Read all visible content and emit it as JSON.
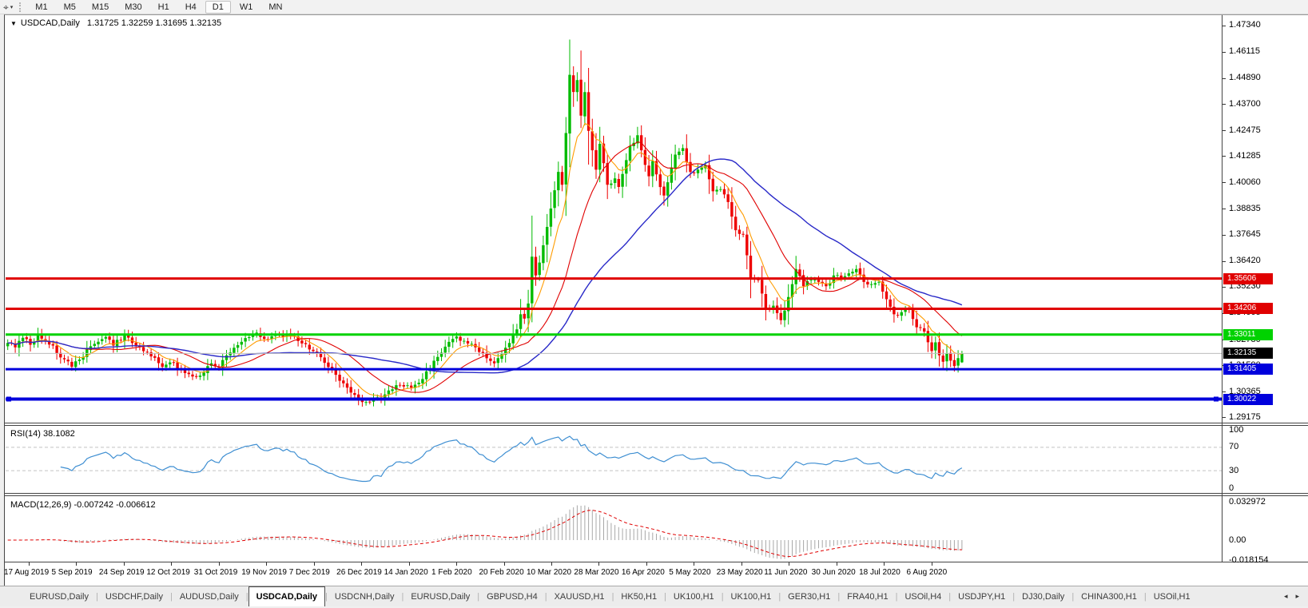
{
  "toolbar": {
    "tool_icon_glyph": "⌖",
    "dropdown_caret": "▾",
    "timeframes": [
      "M1",
      "M5",
      "M15",
      "M30",
      "H1",
      "H4",
      "D1",
      "W1",
      "MN"
    ],
    "active_timeframe": "D1"
  },
  "chart_header": {
    "collapse_icon": "▼",
    "symbol_label": "USDCAD,Daily",
    "ohlc_text": "1.31725 1.32259 1.31695 1.32135"
  },
  "chart_data": {
    "type": "candlestick",
    "symbol": "USDCAD",
    "timeframe": "Daily",
    "last_ohlc": {
      "open": 1.31725,
      "high": 1.32259,
      "low": 1.31695,
      "close": 1.32135
    },
    "price_axis": {
      "ticks": [
        "1.47340",
        "1.46115",
        "1.44890",
        "1.43700",
        "1.42475",
        "1.41285",
        "1.40060",
        "1.38835",
        "1.37645",
        "1.36420",
        "1.35230",
        "1.34005",
        "1.32780",
        "1.31590",
        "1.30365",
        "1.29175"
      ],
      "top_price": 1.4781,
      "bottom_price": 1.2893
    },
    "time_axis": [
      "17 Aug 2019",
      "5 Sep 2019",
      "24 Sep 2019",
      "12 Oct 2019",
      "31 Oct 2019",
      "19 Nov 2019",
      "7 Dec 2019",
      "26 Dec 2019",
      "14 Jan 2020",
      "1 Feb 2020",
      "20 Feb 2020",
      "10 Mar 2020",
      "28 Mar 2020",
      "16 Apr 2020",
      "5 May 2020",
      "23 May 2020",
      "11 Jun 2020",
      "30 Jun 2020",
      "18 Jul 2020",
      "6 Aug 2020"
    ],
    "horizontal_lines": [
      {
        "price": 1.35606,
        "label": "1.35606",
        "color": "#e00000",
        "width": 3,
        "selected": false
      },
      {
        "price": 1.34206,
        "label": "1.34206",
        "color": "#e00000",
        "width": 3,
        "selected": false
      },
      {
        "price": 1.33011,
        "label": "1.33011",
        "color": "#00d200",
        "width": 3,
        "selected": false
      },
      {
        "price": 1.31405,
        "label": "1.31405",
        "color": "#0000dc",
        "width": 3,
        "selected": false
      },
      {
        "price": 1.30022,
        "label": "1.30022",
        "color": "#0000dc",
        "width": 4,
        "selected": true
      }
    ],
    "current_price_line": {
      "price": 1.32135,
      "label": "1.32135",
      "line_color": "#bdbdbd",
      "label_bg": "#000000"
    },
    "candles": {
      "count": 254,
      "up_color": "#00bb00",
      "down_color": "#ee0000",
      "global_high": 1.4668,
      "close_anchors": [
        [
          0,
          1.3262
        ],
        [
          2,
          1.3242
        ],
        [
          4,
          1.3286
        ],
        [
          6,
          1.3254
        ],
        [
          8,
          1.3298
        ],
        [
          10,
          1.3272
        ],
        [
          12,
          1.325
        ],
        [
          14,
          1.3195
        ],
        [
          17,
          1.3152
        ],
        [
          19,
          1.3185
        ],
        [
          21,
          1.3232
        ],
        [
          24,
          1.3268
        ],
        [
          26,
          1.329
        ],
        [
          28,
          1.325
        ],
        [
          31,
          1.33
        ],
        [
          33,
          1.3262
        ],
        [
          35,
          1.3244
        ],
        [
          38,
          1.32
        ],
        [
          41,
          1.3152
        ],
        [
          43,
          1.3172
        ],
        [
          46,
          1.3138
        ],
        [
          48,
          1.3118
        ],
        [
          50,
          1.3108
        ],
        [
          52,
          1.3125
        ],
        [
          54,
          1.3168
        ],
        [
          56,
          1.3148
        ],
        [
          58,
          1.3205
        ],
        [
          61,
          1.3252
        ],
        [
          63,
          1.3285
        ],
        [
          66,
          1.331
        ],
        [
          69,
          1.328
        ],
        [
          72,
          1.3302
        ],
        [
          75,
          1.3295
        ],
        [
          78,
          1.326
        ],
        [
          81,
          1.3225
        ],
        [
          84,
          1.317
        ],
        [
          87,
          1.3115
        ],
        [
          89,
          1.3075
        ],
        [
          91,
          1.3032
        ],
        [
          93,
          1.3002
        ],
        [
          95,
          1.2988
        ],
        [
          97,
          1.3008
        ],
        [
          99,
          1.2998
        ],
        [
          101,
          1.3042
        ],
        [
          104,
          1.3068
        ],
        [
          107,
          1.3055
        ],
        [
          110,
          1.3095
        ],
        [
          113,
          1.318
        ],
        [
          116,
          1.3245
        ],
        [
          119,
          1.3292
        ],
        [
          121,
          1.3272
        ],
        [
          123,
          1.3258
        ],
        [
          126,
          1.3215
        ],
        [
          129,
          1.3168
        ],
        [
          131,
          1.321
        ],
        [
          133,
          1.3262
        ],
        [
          135,
          1.3325
        ],
        [
          136,
          1.3395
        ],
        [
          137,
          1.3375
        ],
        [
          138,
          1.3445
        ],
        [
          139,
          1.3662
        ],
        [
          140,
          1.3575
        ],
        [
          141,
          1.3635
        ],
        [
          142,
          1.3715
        ],
        [
          143,
          1.38
        ],
        [
          144,
          1.3885
        ],
        [
          145,
          1.397
        ],
        [
          146,
          1.4055
        ],
        [
          147,
          1.3995
        ],
        [
          148,
          1.4235
        ],
        [
          149,
          1.4505
        ],
        [
          150,
          1.4425
        ],
        [
          151,
          1.448
        ],
        [
          152,
          1.4315
        ],
        [
          153,
          1.4425
        ],
        [
          154,
          1.4245
        ],
        [
          155,
          1.4155
        ],
        [
          156,
          1.4065
        ],
        [
          157,
          1.4185
        ],
        [
          158,
          1.4095
        ],
        [
          159,
          1.3995
        ],
        [
          161,
          1.4025
        ],
        [
          162,
          1.3985
        ],
        [
          163,
          1.4045
        ],
        [
          165,
          1.4175
        ],
        [
          167,
          1.4225
        ],
        [
          168,
          1.4155
        ],
        [
          170,
          1.4035
        ],
        [
          171,
          1.4105
        ],
        [
          173,
          1.3985
        ],
        [
          174,
          1.3945
        ],
        [
          176,
          1.4075
        ],
        [
          177,
          1.4135
        ],
        [
          179,
          1.4165
        ],
        [
          181,
          1.4055
        ],
        [
          183,
          1.4065
        ],
        [
          185,
          1.4085
        ],
        [
          187,
          1.3965
        ],
        [
          189,
          1.3975
        ],
        [
          191,
          1.3915
        ],
        [
          193,
          1.3785
        ],
        [
          195,
          1.3765
        ],
        [
          197,
          1.3565
        ],
        [
          199,
          1.3555
        ],
        [
          201,
          1.3425
        ],
        [
          203,
          1.3435
        ],
        [
          205,
          1.3368
        ],
        [
          207,
          1.3475
        ],
        [
          209,
          1.3605
        ],
        [
          211,
          1.3525
        ],
        [
          213,
          1.3555
        ],
        [
          215,
          1.3545
        ],
        [
          217,
          1.3525
        ],
        [
          219,
          1.3575
        ],
        [
          221,
          1.3565
        ],
        [
          223,
          1.3585
        ],
        [
          225,
          1.3605
        ],
        [
          227,
          1.3545
        ],
        [
          229,
          1.3535
        ],
        [
          231,
          1.3545
        ],
        [
          233,
          1.3465
        ],
        [
          235,
          1.3395
        ],
        [
          237,
          1.3405
        ],
        [
          239,
          1.3415
        ],
        [
          241,
          1.3335
        ],
        [
          243,
          1.3315
        ],
        [
          245,
          1.3225
        ],
        [
          246,
          1.3265
        ],
        [
          247,
          1.3205
        ],
        [
          248,
          1.3175
        ],
        [
          249,
          1.3215
        ],
        [
          250,
          1.318
        ],
        [
          251,
          1.3155
        ],
        [
          252,
          1.3192
        ],
        [
          253,
          1.32135
        ]
      ]
    },
    "moving_averages": [
      {
        "period": 8,
        "method": "ema",
        "color": "#ff9c00"
      },
      {
        "period": 20,
        "method": "sma",
        "color": "#e00000"
      },
      {
        "period": 45,
        "method": "sma",
        "color": "#2828c8"
      }
    ],
    "rsi": {
      "label": "RSI(14) 38.1082",
      "period": 14,
      "current": 38.1082,
      "axis_ticks": [
        "100",
        "70",
        "30",
        "0"
      ],
      "levels": [
        70,
        30
      ],
      "line_color": "#3f8fd2"
    },
    "macd": {
      "label": "MACD(12,26,9) -0.007242 -0.006612",
      "fast": 12,
      "slow": 26,
      "signal_period": 9,
      "current": -0.007242,
      "current_signal": -0.006612,
      "axis_ticks": [
        "0.032972",
        "0.00",
        "-0.018154"
      ],
      "axis_tick_values": [
        0.032972,
        0,
        -0.018154
      ],
      "histogram_color": "#a8a8a8",
      "signal_color": "#e00000"
    }
  },
  "tab_bar": {
    "tabs": [
      {
        "label": "EURUSD,Daily"
      },
      {
        "label": "USDCHF,Daily"
      },
      {
        "label": "AUDUSD,Daily"
      },
      {
        "label": "USDCAD,Daily",
        "active": true
      },
      {
        "label": "USDCNH,Daily"
      },
      {
        "label": "EURUSD,Daily"
      },
      {
        "label": "GBPUSD,H4"
      },
      {
        "label": "XAUUSD,H1"
      },
      {
        "label": "HK50,H1"
      },
      {
        "label": "UK100,H1"
      },
      {
        "label": "UK100,H1"
      },
      {
        "label": "GER30,H1"
      },
      {
        "label": "FRA40,H1"
      },
      {
        "label": "USOil,H4"
      },
      {
        "label": "USDJPY,H1"
      },
      {
        "label": "DJ30,Daily"
      },
      {
        "label": "CHINA300,H1"
      },
      {
        "label": "USOil,H1"
      }
    ],
    "scroll_left": "◂",
    "scroll_right": "▸"
  }
}
